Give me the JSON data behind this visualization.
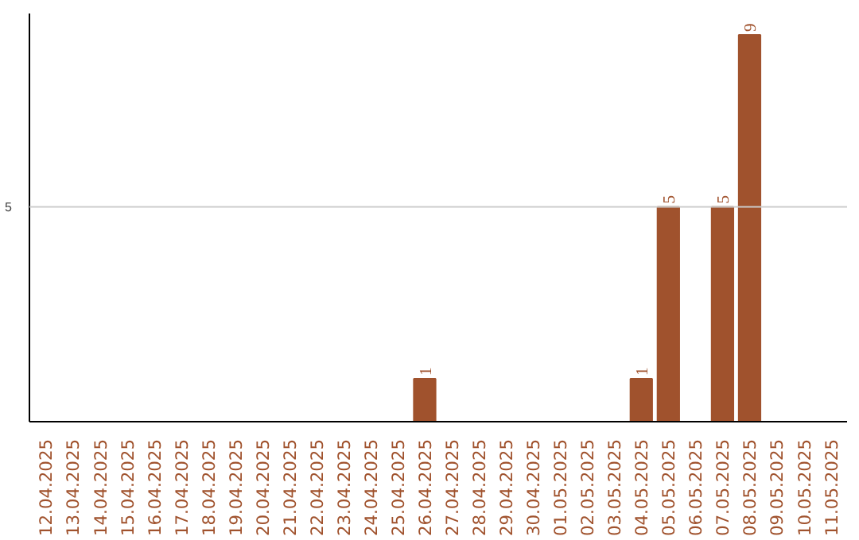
{
  "chart_data": {
    "type": "bar",
    "categories": [
      "12.04.2025",
      "13.04.2025",
      "14.04.2025",
      "15.04.2025",
      "16.04.2025",
      "17.04.2025",
      "18.04.2025",
      "19.04.2025",
      "20.04.2025",
      "21.04.2025",
      "22.04.2025",
      "23.04.2025",
      "24.04.2025",
      "25.04.2025",
      "26.04.2025",
      "27.04.2025",
      "28.04.2025",
      "29.04.2025",
      "30.04.2025",
      "01.05.2025",
      "02.05.2025",
      "03.05.2025",
      "04.05.2025",
      "05.05.2025",
      "06.05.2025",
      "07.05.2025",
      "08.05.2025",
      "09.05.2025",
      "10.05.2025",
      "11.05.2025"
    ],
    "values": [
      null,
      null,
      null,
      null,
      null,
      null,
      null,
      null,
      null,
      null,
      null,
      null,
      null,
      null,
      1,
      null,
      null,
      null,
      null,
      null,
      null,
      null,
      1,
      5,
      null,
      5,
      9,
      null,
      null,
      null
    ],
    "value_labels": [
      null,
      null,
      null,
      null,
      null,
      null,
      null,
      null,
      null,
      null,
      null,
      null,
      null,
      null,
      "1",
      null,
      null,
      null,
      null,
      null,
      null,
      null,
      "1",
      "5",
      null,
      "5",
      "9",
      null,
      null,
      null
    ],
    "color": "#a0522d",
    "ylim": [
      0,
      9.5
    ],
    "ref_lines": [
      {
        "axis": "y",
        "value": 5,
        "label": "5",
        "color": "#cccccc"
      }
    ]
  }
}
